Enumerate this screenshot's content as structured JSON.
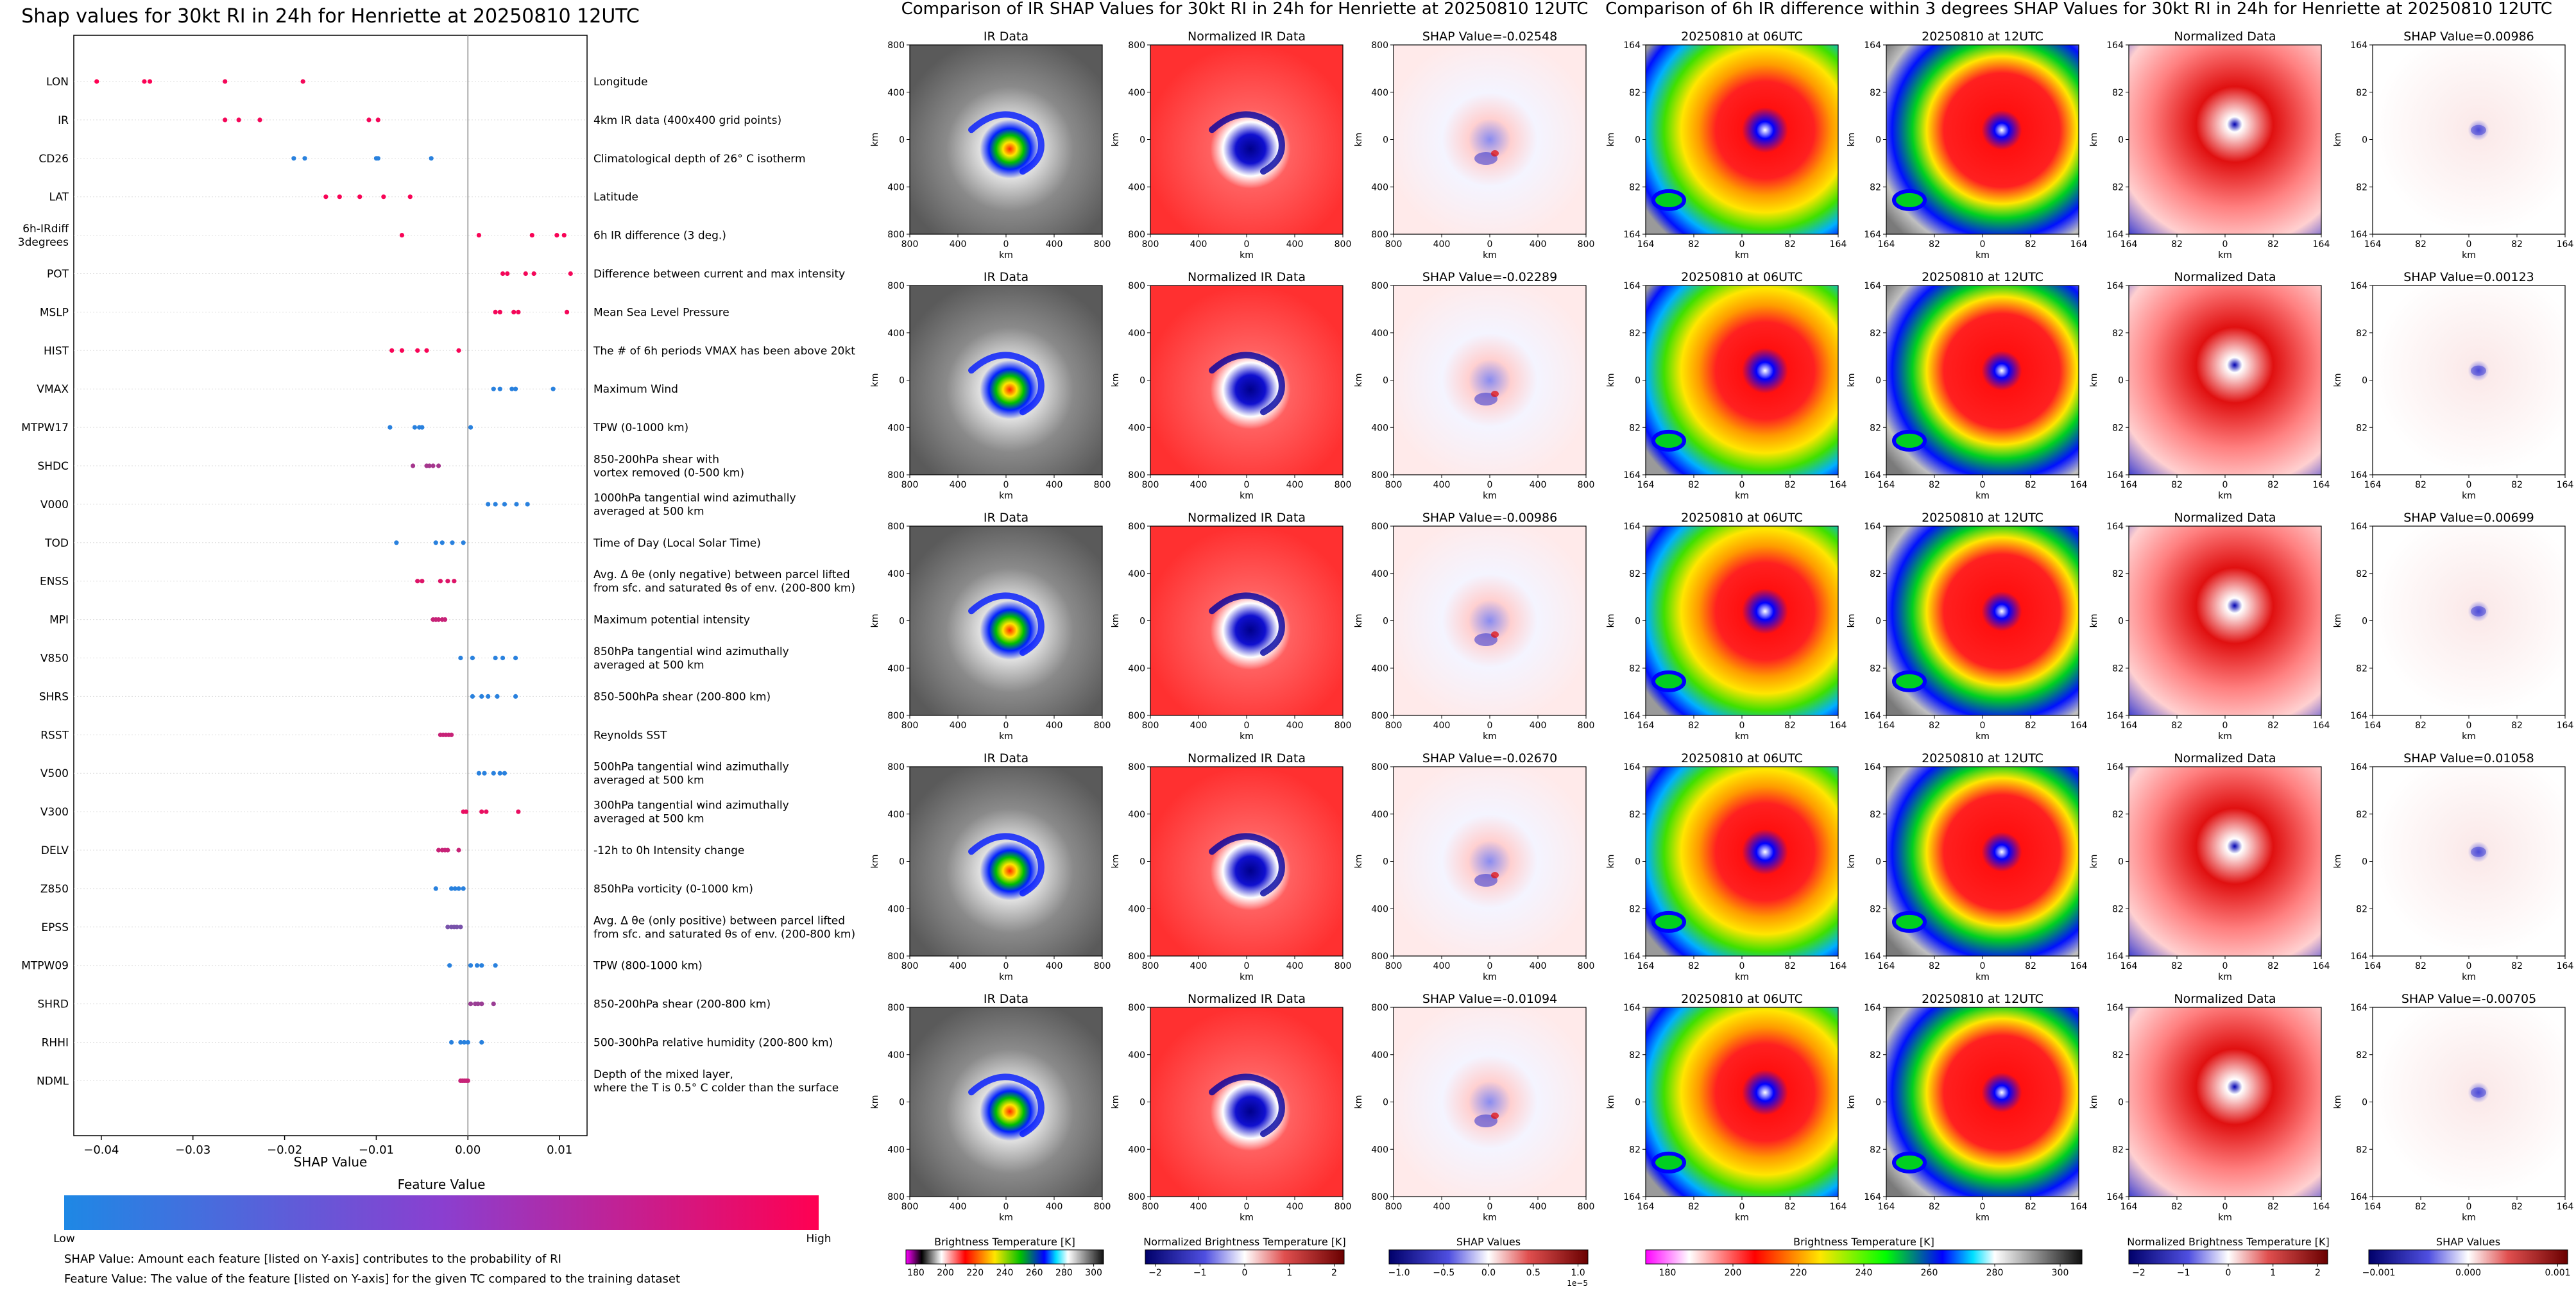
{
  "beeswarm": {
    "title": "Shap values for 30kt RI in 24h for Henriette at 20250810 12UTC",
    "xlabel": "SHAP Value",
    "xlim": [
      -0.043,
      0.013
    ],
    "xticks": [
      -0.04,
      -0.03,
      -0.02,
      -0.01,
      0.0,
      0.01
    ],
    "xtick_labels": [
      "−0.04",
      "−0.03",
      "−0.02",
      "−0.01",
      "0.00",
      "0.01"
    ]
  },
  "chart_data": [
    {
      "type": "scatter",
      "title": "Shap values for 30kt RI in 24h for Henriette at 20250810 12UTC",
      "xlabel": "SHAP Value",
      "xlim": [
        -0.043,
        0.013
      ],
      "features": [
        {
          "name": "LON",
          "desc": "Longitude",
          "points": [
            {
              "x": -0.0405,
              "c": 1.0
            },
            {
              "x": -0.0353,
              "c": 0.98
            },
            {
              "x": -0.0347,
              "c": 0.98
            },
            {
              "x": -0.0265,
              "c": 0.95
            },
            {
              "x": -0.018,
              "c": 0.95
            }
          ]
        },
        {
          "name": "IR",
          "desc": "4km IR data (400x400 grid points)",
          "points": [
            {
              "x": -0.0265,
              "c": 0.95
            },
            {
              "x": -0.025,
              "c": 0.95
            },
            {
              "x": -0.0227,
              "c": 0.95
            },
            {
              "x": -0.0108,
              "c": 0.95
            },
            {
              "x": -0.0098,
              "c": 0.95
            }
          ]
        },
        {
          "name": "CD26",
          "desc": "Climatological depth of 26° C isotherm",
          "points": [
            {
              "x": -0.019,
              "c": 0.05
            },
            {
              "x": -0.0178,
              "c": 0.05
            },
            {
              "x": -0.01,
              "c": 0.05
            },
            {
              "x": -0.0098,
              "c": 0.05
            },
            {
              "x": -0.004,
              "c": 0.05
            }
          ]
        },
        {
          "name": "LAT",
          "desc": "Latitude",
          "points": [
            {
              "x": -0.0155,
              "c": 0.97
            },
            {
              "x": -0.014,
              "c": 0.97
            },
            {
              "x": -0.0118,
              "c": 0.97
            },
            {
              "x": -0.0092,
              "c": 0.97
            },
            {
              "x": -0.0063,
              "c": 0.97
            }
          ]
        },
        {
          "name": "6h-IRdiff\n3degrees",
          "desc": "6h IR difference (3 deg.)",
          "points": [
            {
              "x": -0.0072,
              "c": 0.97
            },
            {
              "x": 0.0012,
              "c": 0.97
            },
            {
              "x": 0.007,
              "c": 0.97
            },
            {
              "x": 0.0097,
              "c": 0.97
            },
            {
              "x": 0.0105,
              "c": 0.97
            }
          ]
        },
        {
          "name": "POT",
          "desc": "Difference between current and max intensity",
          "points": [
            {
              "x": 0.0038,
              "c": 0.95
            },
            {
              "x": 0.0043,
              "c": 0.95
            },
            {
              "x": 0.0063,
              "c": 0.95
            },
            {
              "x": 0.0072,
              "c": 0.95
            },
            {
              "x": 0.0112,
              "c": 0.95
            }
          ]
        },
        {
          "name": "MSLP",
          "desc": "Mean Sea Level Pressure",
          "points": [
            {
              "x": 0.003,
              "c": 0.95
            },
            {
              "x": 0.0035,
              "c": 0.95
            },
            {
              "x": 0.005,
              "c": 0.95
            },
            {
              "x": 0.0055,
              "c": 0.95
            },
            {
              "x": 0.0108,
              "c": 0.95
            }
          ]
        },
        {
          "name": "HIST",
          "desc": "The # of 6h periods VMAX has been above 20kt",
          "points": [
            {
              "x": -0.0083,
              "c": 0.97
            },
            {
              "x": -0.0072,
              "c": 0.97
            },
            {
              "x": -0.0055,
              "c": 0.97
            },
            {
              "x": -0.0045,
              "c": 0.97
            },
            {
              "x": -0.001,
              "c": 0.97
            }
          ]
        },
        {
          "name": "VMAX",
          "desc": "Maximum Wind",
          "points": [
            {
              "x": 0.0028,
              "c": 0.05
            },
            {
              "x": 0.0035,
              "c": 0.05
            },
            {
              "x": 0.0048,
              "c": 0.05
            },
            {
              "x": 0.0052,
              "c": 0.05
            },
            {
              "x": 0.0093,
              "c": 0.05
            }
          ]
        },
        {
          "name": "MTPW17",
          "desc": "TPW (0-1000 km)",
          "points": [
            {
              "x": -0.0085,
              "c": 0.05
            },
            {
              "x": -0.0058,
              "c": 0.05
            },
            {
              "x": -0.0053,
              "c": 0.05
            },
            {
              "x": -0.005,
              "c": 0.05
            },
            {
              "x": 0.0003,
              "c": 0.05
            }
          ]
        },
        {
          "name": "SHDC",
          "desc": "850-200hPa shear with\nvortex removed (0-500 km)",
          "points": [
            {
              "x": -0.006,
              "c": 0.6
            },
            {
              "x": -0.0045,
              "c": 0.6
            },
            {
              "x": -0.0042,
              "c": 0.6
            },
            {
              "x": -0.0038,
              "c": 0.6
            },
            {
              "x": -0.0032,
              "c": 0.6
            }
          ]
        },
        {
          "name": "V000",
          "desc": "1000hPa tangential wind azimuthally\naveraged at 500 km",
          "points": [
            {
              "x": 0.0022,
              "c": 0.05
            },
            {
              "x": 0.003,
              "c": 0.05
            },
            {
              "x": 0.004,
              "c": 0.05
            },
            {
              "x": 0.0053,
              "c": 0.05
            },
            {
              "x": 0.0065,
              "c": 0.05
            }
          ]
        },
        {
          "name": "TOD",
          "desc": "Time of Day (Local Solar Time)",
          "points": [
            {
              "x": -0.0078,
              "c": 0.05
            },
            {
              "x": -0.0035,
              "c": 0.05
            },
            {
              "x": -0.0028,
              "c": 0.05
            },
            {
              "x": -0.0017,
              "c": 0.05
            },
            {
              "x": -0.0005,
              "c": 0.05
            }
          ]
        },
        {
          "name": "ENSS",
          "desc": "Avg. Δ θe (only negative) between parcel lifted\nfrom sfc. and saturated θs of env. (200-800 km)",
          "points": [
            {
              "x": -0.0055,
              "c": 0.85
            },
            {
              "x": -0.005,
              "c": 0.85
            },
            {
              "x": -0.003,
              "c": 0.85
            },
            {
              "x": -0.0022,
              "c": 0.85
            },
            {
              "x": -0.0015,
              "c": 0.85
            }
          ]
        },
        {
          "name": "MPI",
          "desc": "Maximum potential intensity",
          "points": [
            {
              "x": -0.0038,
              "c": 0.75
            },
            {
              "x": -0.0035,
              "c": 0.75
            },
            {
              "x": -0.0032,
              "c": 0.75
            },
            {
              "x": -0.0028,
              "c": 0.75
            },
            {
              "x": -0.0025,
              "c": 0.75
            }
          ]
        },
        {
          "name": "V850",
          "desc": "850hPa tangential wind azimuthally\naveraged at 500 km",
          "points": [
            {
              "x": -0.0008,
              "c": 0.05
            },
            {
              "x": 0.0005,
              "c": 0.05
            },
            {
              "x": 0.003,
              "c": 0.05
            },
            {
              "x": 0.0038,
              "c": 0.05
            },
            {
              "x": 0.0052,
              "c": 0.05
            }
          ]
        },
        {
          "name": "SHRS",
          "desc": "850-500hPa shear (200-800 km)",
          "points": [
            {
              "x": 0.0005,
              "c": 0.05
            },
            {
              "x": 0.0015,
              "c": 0.05
            },
            {
              "x": 0.0022,
              "c": 0.05
            },
            {
              "x": 0.0032,
              "c": 0.05
            },
            {
              "x": 0.0052,
              "c": 0.05
            }
          ]
        },
        {
          "name": "RSST",
          "desc": "Reynolds SST",
          "points": [
            {
              "x": -0.003,
              "c": 0.75
            },
            {
              "x": -0.0027,
              "c": 0.75
            },
            {
              "x": -0.0024,
              "c": 0.75
            },
            {
              "x": -0.0021,
              "c": 0.75
            },
            {
              "x": -0.0018,
              "c": 0.75
            }
          ]
        },
        {
          "name": "V500",
          "desc": "500hPa tangential wind azimuthally\naveraged at 500 km",
          "points": [
            {
              "x": 0.0012,
              "c": 0.05
            },
            {
              "x": 0.0018,
              "c": 0.05
            },
            {
              "x": 0.0028,
              "c": 0.05
            },
            {
              "x": 0.0035,
              "c": 0.05
            },
            {
              "x": 0.004,
              "c": 0.05
            }
          ]
        },
        {
          "name": "V300",
          "desc": "300hPa tangential wind azimuthally\naveraged at 500 km",
          "points": [
            {
              "x": -0.0005,
              "c": 0.9
            },
            {
              "x": -0.0002,
              "c": 0.9
            },
            {
              "x": 0.0015,
              "c": 0.9
            },
            {
              "x": 0.002,
              "c": 0.9
            },
            {
              "x": 0.0055,
              "c": 0.9
            }
          ]
        },
        {
          "name": "DELV",
          "desc": "-12h to 0h Intensity change",
          "points": [
            {
              "x": -0.0032,
              "c": 0.75
            },
            {
              "x": -0.0028,
              "c": 0.75
            },
            {
              "x": -0.0025,
              "c": 0.75
            },
            {
              "x": -0.0022,
              "c": 0.75
            },
            {
              "x": -0.001,
              "c": 0.75
            }
          ]
        },
        {
          "name": "Z850",
          "desc": "850hPa vorticity (0-1000 km)",
          "points": [
            {
              "x": -0.0035,
              "c": 0.05
            },
            {
              "x": -0.0018,
              "c": 0.05
            },
            {
              "x": -0.0014,
              "c": 0.05
            },
            {
              "x": -0.001,
              "c": 0.05
            },
            {
              "x": -0.0005,
              "c": 0.05
            }
          ]
        },
        {
          "name": "EPSS",
          "desc": "Avg. Δ θe (only positive) between parcel lifted\nfrom sfc. and saturated θs of env. (200-800 km)",
          "points": [
            {
              "x": -0.0022,
              "c": 0.4
            },
            {
              "x": -0.0018,
              "c": 0.4
            },
            {
              "x": -0.0015,
              "c": 0.4
            },
            {
              "x": -0.0012,
              "c": 0.4
            },
            {
              "x": -0.0008,
              "c": 0.4
            }
          ]
        },
        {
          "name": "MTPW09",
          "desc": "TPW (800-1000 km)",
          "points": [
            {
              "x": -0.002,
              "c": 0.05
            },
            {
              "x": 0.0003,
              "c": 0.05
            },
            {
              "x": 0.001,
              "c": 0.05
            },
            {
              "x": 0.0015,
              "c": 0.05
            },
            {
              "x": 0.003,
              "c": 0.05
            }
          ]
        },
        {
          "name": "SHRD",
          "desc": "850-200hPa shear (200-800 km)",
          "points": [
            {
              "x": 0.0003,
              "c": 0.55
            },
            {
              "x": 0.0008,
              "c": 0.55
            },
            {
              "x": 0.0011,
              "c": 0.55
            },
            {
              "x": 0.0015,
              "c": 0.55
            },
            {
              "x": 0.0028,
              "c": 0.55
            }
          ]
        },
        {
          "name": "RHHI",
          "desc": "500-300hPa relative humidity (200-800 km)",
          "points": [
            {
              "x": -0.0018,
              "c": 0.05
            },
            {
              "x": -0.0008,
              "c": 0.05
            },
            {
              "x": -0.0004,
              "c": 0.05
            },
            {
              "x": 0.0,
              "c": 0.05
            },
            {
              "x": 0.0015,
              "c": 0.05
            }
          ]
        },
        {
          "name": "NDML",
          "desc": "Depth of the mixed layer,\nwhere the T is 0.5° C colder than the surface",
          "points": [
            {
              "x": -0.0008,
              "c": 0.75
            },
            {
              "x": -0.0006,
              "c": 0.75
            },
            {
              "x": -0.0004,
              "c": 0.75
            },
            {
              "x": -0.0002,
              "c": 0.75
            },
            {
              "x": 0.0,
              "c": 0.75
            }
          ]
        }
      ]
    },
    {
      "type": "heatmap",
      "title": "Comparison of IR SHAP Values for 30kt RI in 24h for Henriette at 20250810 12UTC",
      "columns": [
        "IR Data",
        "Normalized IR Data",
        "SHAP Value"
      ],
      "shap_values": [
        "-0.02548",
        "-0.02289",
        "-0.00986",
        "-0.02670",
        "-0.01094"
      ],
      "xticks": [
        "800",
        "400",
        "0",
        "400",
        "800"
      ],
      "yticks": [
        "800",
        "400",
        "0",
        "400",
        "800"
      ],
      "axis_label": "km"
    },
    {
      "type": "heatmap",
      "title": "Comparison of 6h IR difference within 3 degrees SHAP Values for 30kt RI in 24h for Henriette at 20250810 12UTC",
      "columns": [
        "20250810 at 06UTC",
        "20250810 at 12UTC",
        "Normalized Data",
        "SHAP Value"
      ],
      "shap_values": [
        "0.00986",
        "0.00123",
        "0.00699",
        "0.01058",
        "-0.00705"
      ],
      "xticks": [
        "164",
        "82",
        "0",
        "82",
        "164"
      ],
      "yticks": [
        "164",
        "82",
        "0",
        "82",
        "164"
      ],
      "axis_label": "km"
    }
  ],
  "legend": {
    "feature_value_title": "Feature Value",
    "low": "Low",
    "high": "High",
    "gradient_low": "#1e88e5",
    "gradient_high": "#ff0052"
  },
  "notes": {
    "line1": "SHAP Value: Amount each feature [listed on Y-axis] contributes to the probability of RI",
    "line2": "Feature Value: The value of the feature [listed on Y-axis] for the given TC compared to the training dataset"
  },
  "ir_panel": {
    "title": "Comparison of IR SHAP Values for 30kt RI in 24h for Henriette at 20250810 12UTC",
    "col_titles": [
      "IR Data",
      "Normalized IR Data"
    ],
    "shap_prefix": "SHAP Value=",
    "shap_values": [
      "-0.02548",
      "-0.02289",
      "-0.00986",
      "-0.02670",
      "-0.01094"
    ]
  },
  "diff_panel": {
    "title": "Comparison of 6h IR difference within 3 degrees SHAP Values for 30kt RI in 24h for Henriette at 20250810 12UTC",
    "col_titles": [
      "20250810 at 06UTC",
      "20250810 at 12UTC",
      "Normalized Data"
    ],
    "shap_prefix": "SHAP Value=",
    "shap_values": [
      "0.00986",
      "0.00123",
      "0.00699",
      "0.01058",
      "-0.00705"
    ]
  },
  "colorbars": [
    {
      "label": "Brightness Temperature [K]",
      "ticks": [
        "180",
        "200",
        "220",
        "240",
        "260",
        "280",
        "300"
      ],
      "kind": "ir"
    },
    {
      "label": "Normalized Brightness Temperature [K]",
      "ticks": [
        "−2",
        "−1",
        "0",
        "1",
        "2"
      ],
      "kind": "div"
    },
    {
      "label": "SHAP Values",
      "ticks": [
        "−1.0",
        "−0.5",
        "0.0",
        "0.5",
        "1.0"
      ],
      "kind": "div",
      "offset": "1e−5"
    },
    {
      "label": "Brightness Temperature [K]",
      "ticks": [
        "180",
        "200",
        "220",
        "240",
        "260",
        "280",
        "300"
      ],
      "kind": "rainbow"
    },
    {
      "label": "Normalized Brightness Temperature [K]",
      "ticks": [
        "−2",
        "−1",
        "0",
        "1",
        "2"
      ],
      "kind": "div"
    },
    {
      "label": "SHAP Values",
      "ticks": [
        "−0.001",
        "0.000",
        "0.001"
      ],
      "kind": "div"
    }
  ],
  "axes": {
    "ir_ticks": [
      "800",
      "400",
      "0",
      "400",
      "800"
    ],
    "diff_ticks": [
      "164",
      "82",
      "0",
      "82",
      "164"
    ],
    "unit_label": "km"
  },
  "colors": {
    "ir_core": "#0000ff",
    "normalized_bg": "#ff4040",
    "shap_positive": "#d7191c",
    "shap_negative": "#2c3fbf"
  }
}
